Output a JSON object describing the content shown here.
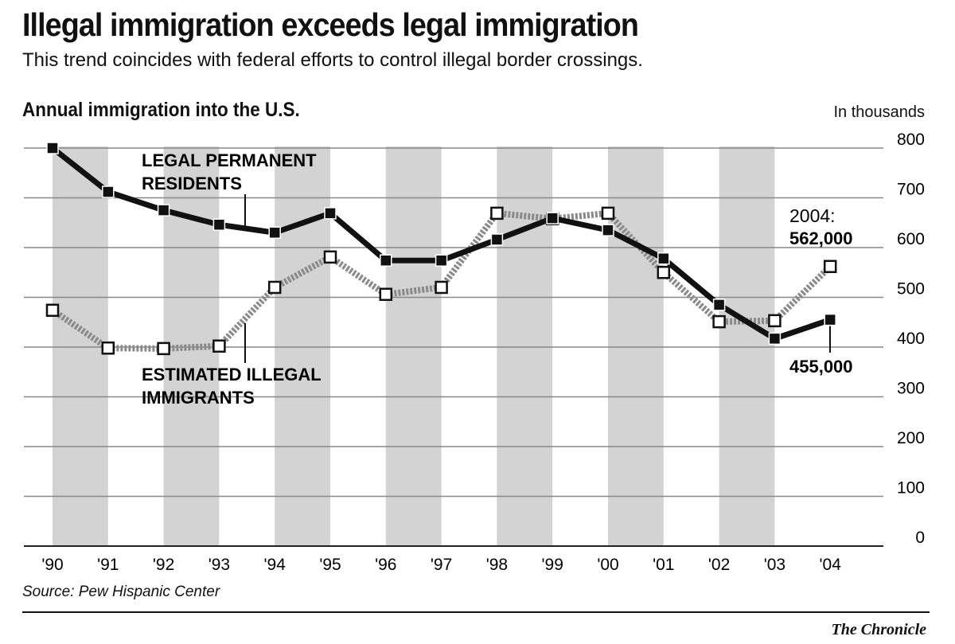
{
  "title": "Illegal immigration exceeds legal immigration",
  "subtitle": "This trend coincides with federal efforts to control illegal border crossings.",
  "source": "Source: Pew Hispanic Center",
  "credit": "The Chronicle",
  "chart_data": {
    "type": "line",
    "title": "Annual immigration into the U.S.",
    "ylabel": "In thousands",
    "ylim": [
      0,
      800
    ],
    "yticks": [
      0,
      100,
      200,
      300,
      400,
      500,
      600,
      700,
      800
    ],
    "categories": [
      "'90",
      "'91",
      "'92",
      "'93",
      "'94",
      "'95",
      "'96",
      "'97",
      "'98",
      "'99",
      "'00",
      "'01",
      "'02",
      "'03",
      "'04"
    ],
    "grid": true,
    "series": [
      {
        "name": "LEGAL PERMANENT RESIDENTS",
        "name_lines": [
          "LEGAL PERMANENT",
          "RESIDENTS"
        ],
        "color": "#111111",
        "marker": "filled-square",
        "values": [
          800,
          712,
          675,
          646,
          630,
          669,
          574,
          574,
          616,
          659,
          635,
          578,
          485,
          417,
          455
        ]
      },
      {
        "name": "ESTIMATED ILLEGAL IMMIGRANTS",
        "name_lines": [
          "ESTIMATED ILLEGAL",
          "IMMIGRANTS"
        ],
        "color": "#8a8a8a",
        "marker": "open-square",
        "values": [
          474,
          398,
          397,
          402,
          520,
          581,
          506,
          520,
          669,
          658,
          669,
          550,
          451,
          453,
          562
        ]
      }
    ],
    "annotations": [
      {
        "lines": [
          "2004:",
          "562,000"
        ],
        "series": "ESTIMATED ILLEGAL IMMIGRANTS"
      },
      {
        "lines": [
          "455,000"
        ],
        "series": "LEGAL PERMANENT RESIDENTS"
      }
    ],
    "colors": {
      "band": "#d3d3d3",
      "grid": "#888888"
    }
  }
}
